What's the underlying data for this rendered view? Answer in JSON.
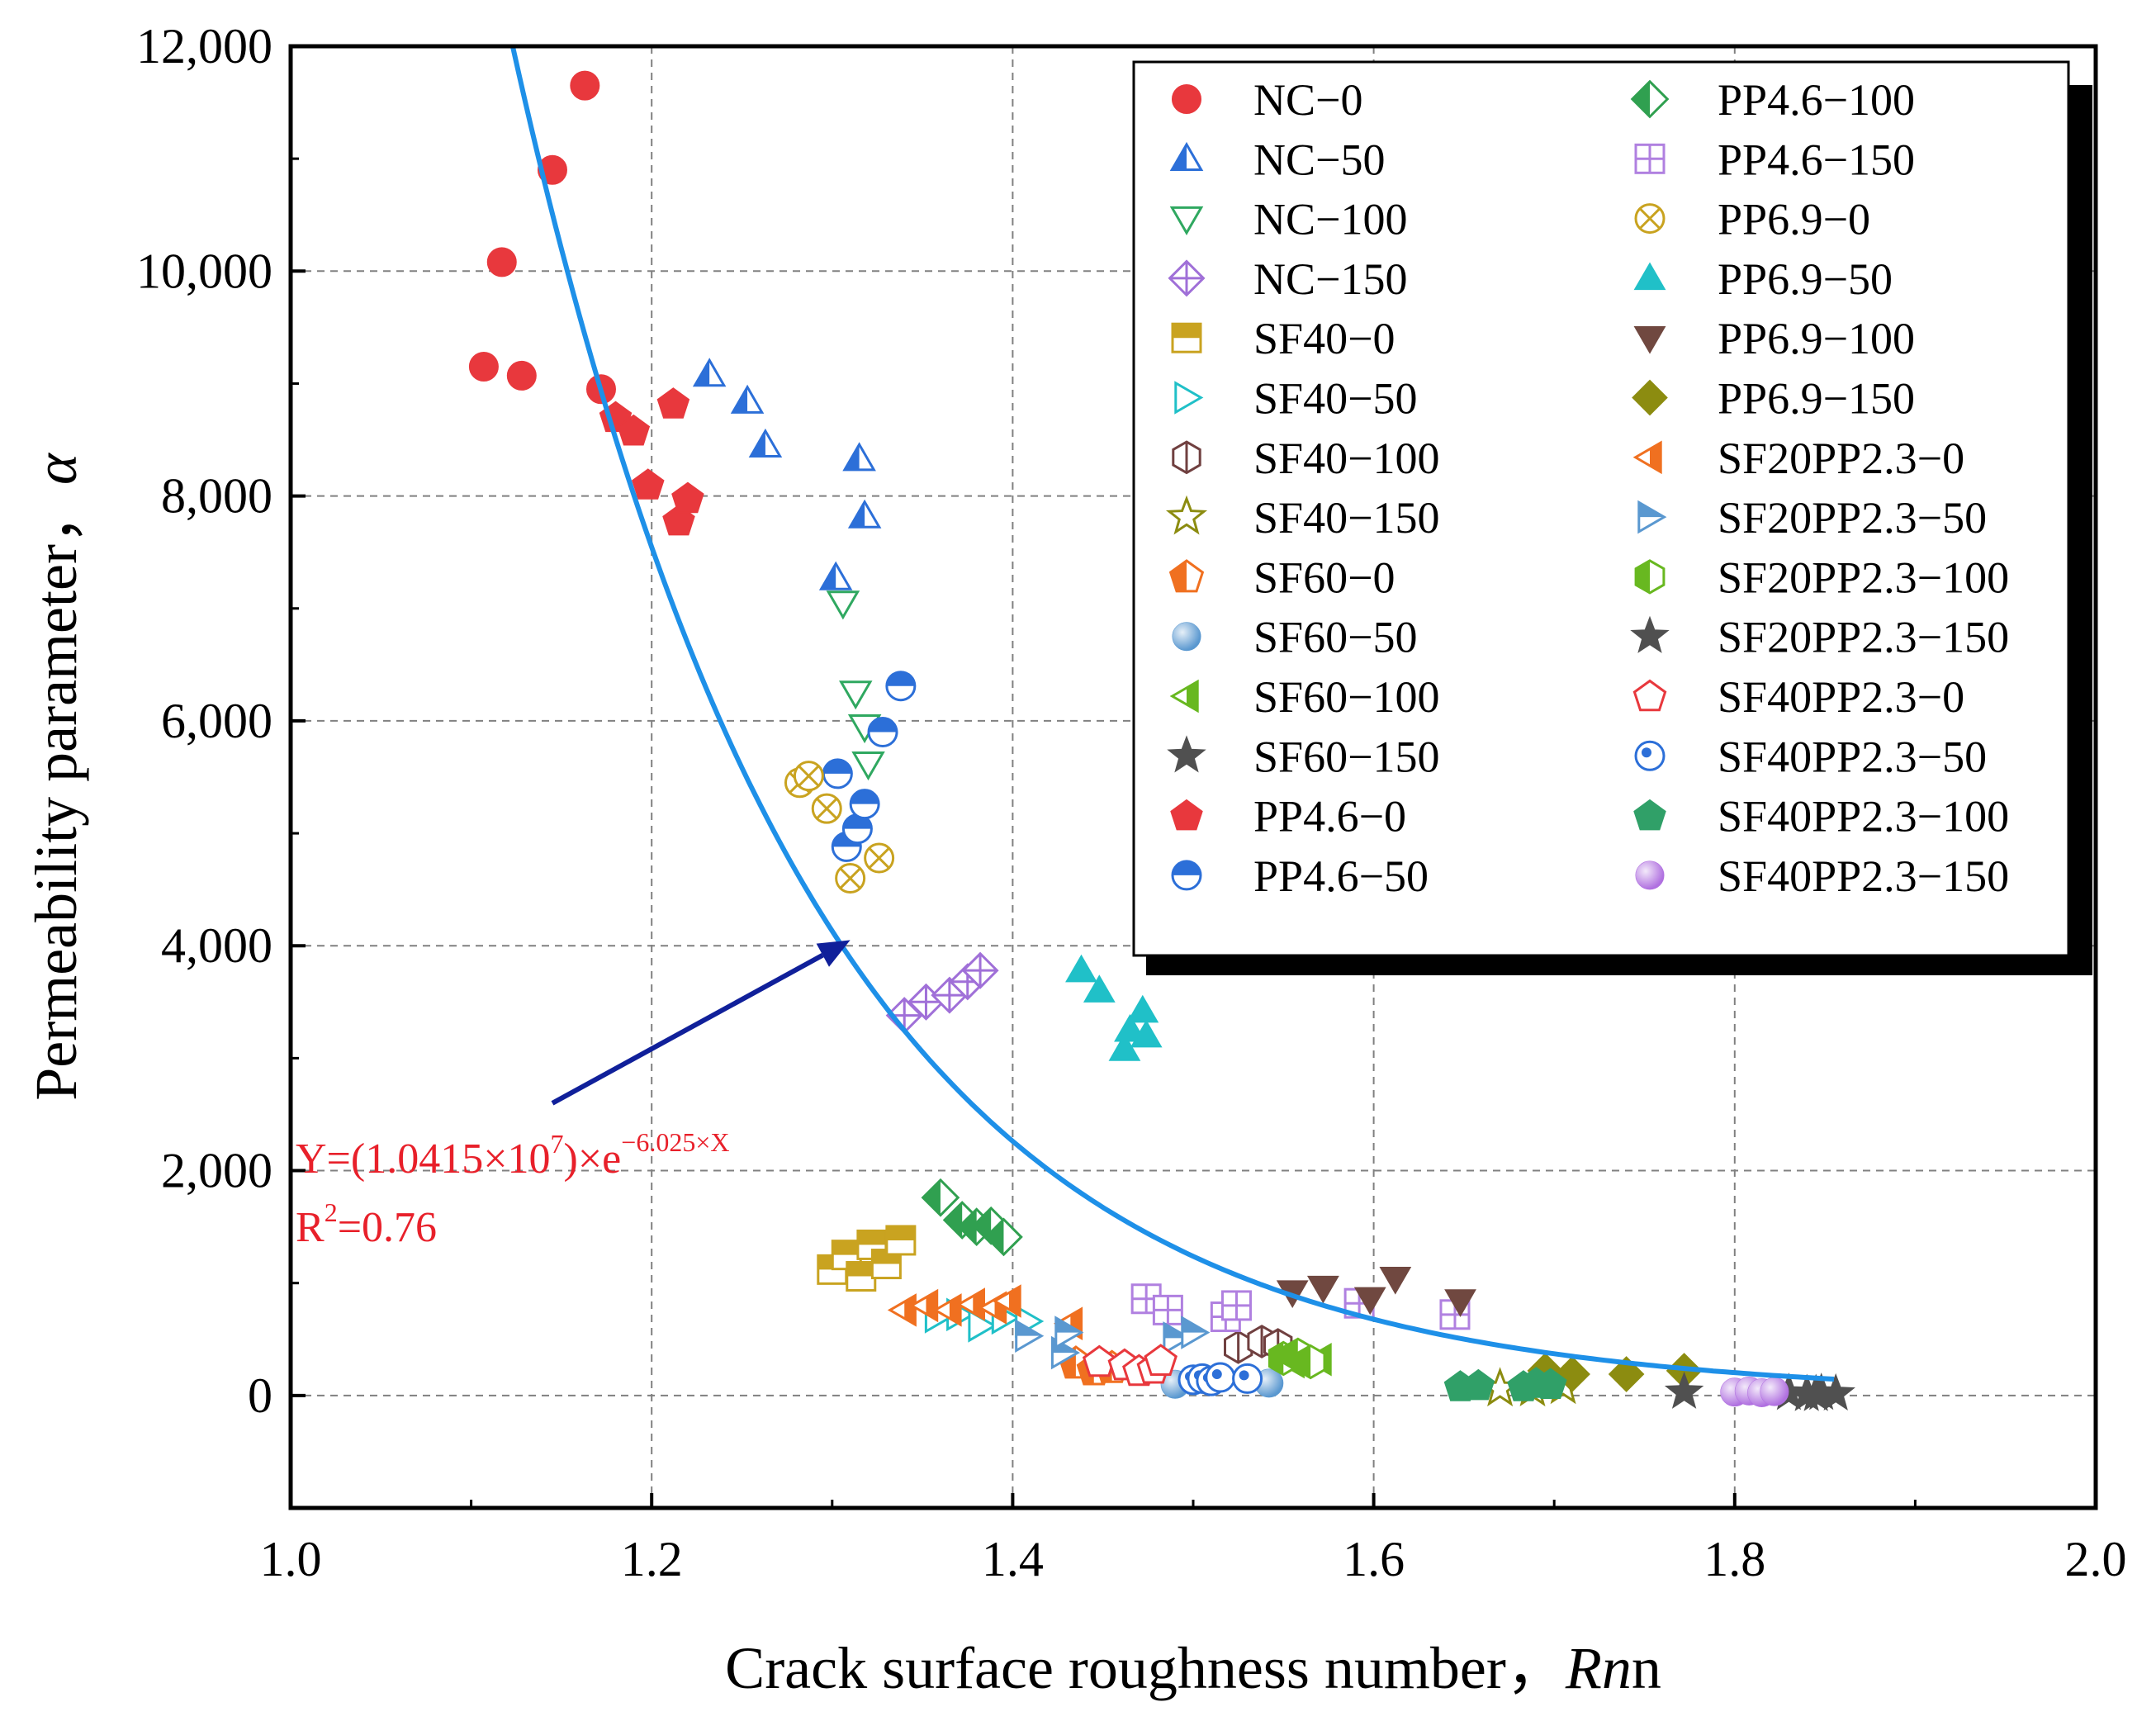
{
  "chart_data": {
    "type": "scatter",
    "xlabel": "Crack surface roughness number，",
    "xlabel_italic": "Rn",
    "ylabel": "Permeability parameter，",
    "ylabel_italic": "α",
    "xlim": [
      1.0,
      2.0
    ],
    "ylim": [
      -1000,
      12000
    ],
    "xticks": [
      1.0,
      1.2,
      1.4,
      1.6,
      1.8,
      2.0
    ],
    "xtick_labels": [
      "1.0",
      "1.2",
      "1.4",
      "1.6",
      "1.8",
      "2.0"
    ],
    "yticks": [
      0,
      2000,
      4000,
      6000,
      8000,
      10000,
      12000
    ],
    "ytick_labels": [
      "0",
      "2,000",
      "4,000",
      "6,000",
      "8,000",
      "10,000",
      "12,000"
    ],
    "grid": true,
    "legend_position": "top-right",
    "fit": {
      "color": "#1E90E8",
      "a": 10415000,
      "b": -6.025,
      "x_range": [
        1.12,
        1.855
      ],
      "equation_main": "Y=(1.0415×10",
      "equation_exp": "7",
      "equation_mid": ")×e",
      "equation_power": "−6.025×X",
      "r2_main": "R",
      "r2_sup": "2",
      "r2_value": "=0.76",
      "label_color": "#E8202A"
    },
    "arrow": {
      "from": [
        1.145,
        2600
      ],
      "to": [
        1.31,
        4050
      ],
      "color": "#10209A"
    },
    "series": [
      {
        "name": "NC−0",
        "marker": "circle-filled",
        "color": "#E8383D",
        "points": [
          [
            1.107,
            9150
          ],
          [
            1.117,
            10080
          ],
          [
            1.128,
            9070
          ],
          [
            1.145,
            10900
          ],
          [
            1.163,
            11650
          ],
          [
            1.172,
            8950
          ]
        ]
      },
      {
        "name": "NC−50",
        "marker": "triangle-half",
        "color": "#2C6FD8",
        "points": [
          [
            1.232,
            9080
          ],
          [
            1.253,
            8840
          ],
          [
            1.263,
            8450
          ],
          [
            1.302,
            7270
          ],
          [
            1.315,
            8330
          ],
          [
            1.318,
            7820
          ]
        ]
      },
      {
        "name": "NC−100",
        "marker": "triangle-down-open",
        "color": "#2FA860",
        "points": [
          [
            1.306,
            7050
          ],
          [
            1.313,
            6250
          ],
          [
            1.318,
            5950
          ],
          [
            1.32,
            5620
          ]
        ]
      },
      {
        "name": "NC−150",
        "marker": "diamond-cross",
        "color": "#A070D8",
        "points": [
          [
            1.34,
            3380
          ],
          [
            1.352,
            3500
          ],
          [
            1.365,
            3560
          ],
          [
            1.375,
            3680
          ],
          [
            1.382,
            3780
          ]
        ]
      },
      {
        "name": "SF40−0",
        "marker": "square-half",
        "color": "#C9A320",
        "points": [
          [
            1.3,
            1120
          ],
          [
            1.308,
            1250
          ],
          [
            1.316,
            1060
          ],
          [
            1.322,
            1340
          ],
          [
            1.33,
            1170
          ],
          [
            1.338,
            1380
          ]
        ]
      },
      {
        "name": "SF40−50",
        "marker": "triangle-right-open",
        "color": "#20C0C8",
        "points": [
          [
            1.358,
            700
          ],
          [
            1.37,
            720
          ],
          [
            1.382,
            620
          ],
          [
            1.395,
            690
          ],
          [
            1.408,
            660
          ]
        ]
      },
      {
        "name": "SF40−100",
        "marker": "hexagon-cross",
        "color": "#704040",
        "points": [
          [
            1.525,
            430
          ],
          [
            1.538,
            480
          ],
          [
            1.547,
            450
          ]
        ]
      },
      {
        "name": "SF40−150",
        "marker": "star-open",
        "color": "#8C8C10",
        "points": [
          [
            1.67,
            60
          ],
          [
            1.688,
            60
          ],
          [
            1.705,
            80
          ]
        ]
      },
      {
        "name": "SF60−0",
        "marker": "pentagon-half",
        "color": "#F07020",
        "points": [
          [
            1.435,
            290
          ],
          [
            1.445,
            230
          ],
          [
            1.455,
            250
          ]
        ]
      },
      {
        "name": "SF60−50",
        "marker": "circle-shaded",
        "color": "#5A98D0",
        "points": [
          [
            1.49,
            100
          ],
          [
            1.5,
            130
          ],
          [
            1.542,
            110
          ]
        ]
      },
      {
        "name": "SF60−100",
        "marker": "triangle-left-half",
        "color": "#68B820",
        "points": [
          [
            1.555,
            300
          ],
          [
            1.57,
            320
          ]
        ]
      },
      {
        "name": "SF60−150",
        "marker": "star-filled",
        "color": "#505050",
        "points": [
          [
            1.84,
            10
          ],
          [
            1.848,
            20
          ],
          [
            1.856,
            15
          ]
        ]
      },
      {
        "name": "PP4.6−0",
        "marker": "pentagon-filled",
        "color": "#E8383D",
        "points": [
          [
            1.18,
            8700
          ],
          [
            1.19,
            8580
          ],
          [
            1.198,
            8100
          ],
          [
            1.212,
            8820
          ],
          [
            1.215,
            7780
          ],
          [
            1.22,
            7980
          ]
        ]
      },
      {
        "name": "PP4.6−50",
        "marker": "circle-half",
        "color": "#2C6FD8",
        "points": [
          [
            1.303,
            5530
          ],
          [
            1.308,
            4880
          ],
          [
            1.314,
            5040
          ],
          [
            1.318,
            5260
          ],
          [
            1.328,
            5900
          ],
          [
            1.338,
            6310
          ]
        ]
      },
      {
        "name": "PP4.6−100",
        "marker": "diamond-half",
        "color": "#30A050",
        "points": [
          [
            1.36,
            1760
          ],
          [
            1.372,
            1560
          ],
          [
            1.38,
            1500
          ],
          [
            1.388,
            1510
          ],
          [
            1.395,
            1410
          ]
        ]
      },
      {
        "name": "PP4.6−150",
        "marker": "square-cross",
        "color": "#B080E0",
        "points": [
          [
            1.474,
            860
          ],
          [
            1.486,
            760
          ],
          [
            1.518,
            700
          ],
          [
            1.524,
            800
          ],
          [
            1.592,
            820
          ],
          [
            1.645,
            720
          ]
        ]
      },
      {
        "name": "PP6.9−0",
        "marker": "circle-x",
        "color": "#C9A320",
        "points": [
          [
            1.282,
            5450
          ],
          [
            1.287,
            5510
          ],
          [
            1.297,
            5220
          ],
          [
            1.31,
            4600
          ],
          [
            1.326,
            4780
          ]
        ]
      },
      {
        "name": "PP6.9−50",
        "marker": "triangle-filled",
        "color": "#20C0C8",
        "points": [
          [
            1.438,
            3780
          ],
          [
            1.448,
            3600
          ],
          [
            1.462,
            3080
          ],
          [
            1.465,
            3250
          ],
          [
            1.472,
            3420
          ],
          [
            1.474,
            3200
          ]
        ]
      },
      {
        "name": "PP6.9−100",
        "marker": "triangle-down-filled",
        "color": "#704840",
        "points": [
          [
            1.555,
            920
          ],
          [
            1.572,
            960
          ],
          [
            1.598,
            860
          ],
          [
            1.612,
            1040
          ],
          [
            1.648,
            840
          ]
        ]
      },
      {
        "name": "PP6.9−150",
        "marker": "diamond-filled",
        "color": "#8C8C10",
        "points": [
          [
            1.695,
            220
          ],
          [
            1.71,
            190
          ],
          [
            1.74,
            190
          ],
          [
            1.772,
            220
          ]
        ]
      },
      {
        "name": "SF20PP2.3−0",
        "marker": "triangle-left-half",
        "color": "#F07020",
        "points": [
          [
            1.34,
            760
          ],
          [
            1.352,
            800
          ],
          [
            1.365,
            760
          ],
          [
            1.378,
            810
          ],
          [
            1.39,
            780
          ],
          [
            1.398,
            840
          ],
          [
            1.432,
            640
          ]
        ]
      },
      {
        "name": "SF20PP2.3−50",
        "marker": "triangle-right-half",
        "color": "#5A98D0",
        "points": [
          [
            1.408,
            530
          ],
          [
            1.428,
            380
          ],
          [
            1.43,
            560
          ],
          [
            1.49,
            510
          ],
          [
            1.5,
            560
          ]
        ]
      },
      {
        "name": "SF20PP2.3−100",
        "marker": "hexagon-half",
        "color": "#68B820",
        "points": [
          [
            1.55,
            330
          ],
          [
            1.558,
            360
          ],
          [
            1.565,
            300
          ]
        ]
      },
      {
        "name": "SF20PP2.3−150",
        "marker": "star-filled",
        "color": "#505050",
        "points": [
          [
            1.772,
            30
          ],
          [
            1.83,
            20
          ],
          [
            1.845,
            10
          ]
        ]
      },
      {
        "name": "SF40PP2.3−0",
        "marker": "pentagon-open",
        "color": "#E8383D",
        "points": [
          [
            1.448,
            300
          ],
          [
            1.462,
            270
          ],
          [
            1.47,
            220
          ],
          [
            1.478,
            240
          ],
          [
            1.482,
            310
          ]
        ]
      },
      {
        "name": "SF40PP2.3−50",
        "marker": "circle-dot-open",
        "color": "#2C6FD8",
        "points": [
          [
            1.5,
            140
          ],
          [
            1.505,
            150
          ],
          [
            1.51,
            130
          ],
          [
            1.515,
            160
          ],
          [
            1.53,
            150
          ]
        ]
      },
      {
        "name": "SF40PP2.3−100",
        "marker": "pentagon-filled",
        "color": "#30A068",
        "points": [
          [
            1.648,
            80
          ],
          [
            1.658,
            90
          ],
          [
            1.683,
            80
          ],
          [
            1.69,
            110
          ],
          [
            1.698,
            100
          ]
        ]
      },
      {
        "name": "SF40PP2.3−150",
        "marker": "circle-shaded",
        "color": "#B070E0",
        "points": [
          [
            1.8,
            30
          ],
          [
            1.808,
            40
          ],
          [
            1.815,
            25
          ],
          [
            1.822,
            35
          ]
        ]
      }
    ]
  }
}
